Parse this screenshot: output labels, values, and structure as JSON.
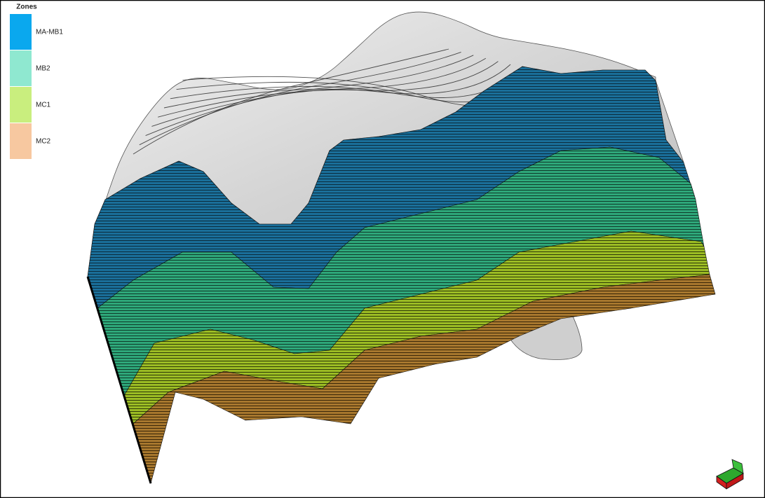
{
  "legend": {
    "title": "Zones",
    "items": [
      {
        "name": "MA-MB1",
        "color": "#0aa8ee"
      },
      {
        "name": "MB2",
        "color": "#8fe8d0"
      },
      {
        "name": "MC1",
        "color": "#c9ee7e"
      },
      {
        "name": "MC2",
        "color": "#f7c8a0"
      }
    ]
  }
}
